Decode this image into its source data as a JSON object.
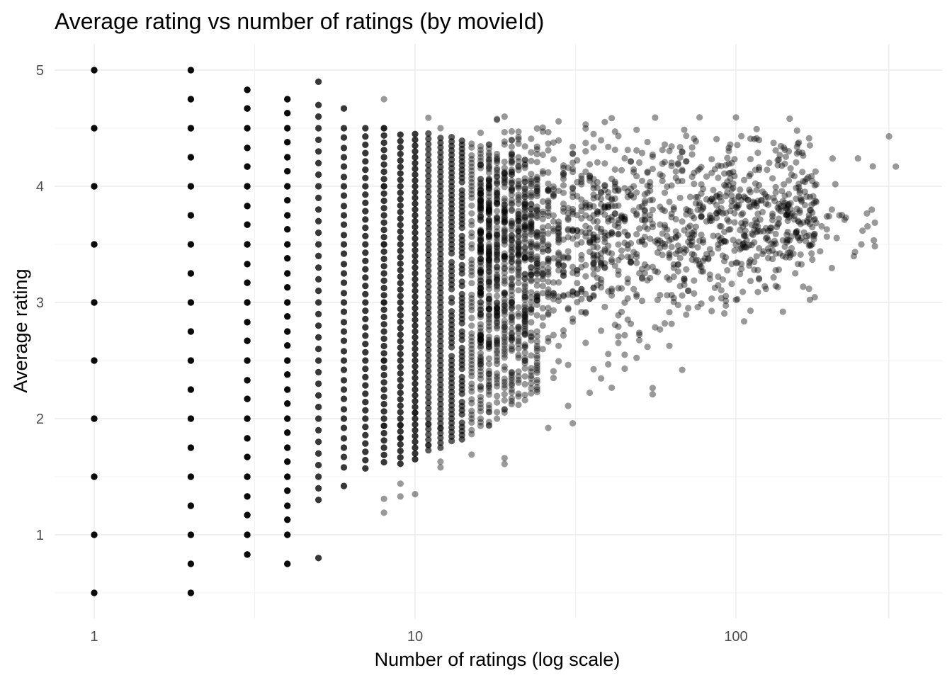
{
  "chart_data": {
    "type": "scatter",
    "title": "Average rating vs number of ratings (by movieId)",
    "xlabel": "Number of ratings (log scale)",
    "ylabel": "Average rating",
    "x_scale": "log10",
    "xlim": [
      0.85,
      370
    ],
    "ylim": [
      0.3,
      5.2
    ],
    "x_ticks": [
      1,
      10,
      100
    ],
    "x_tick_labels": [
      "1",
      "10",
      "100"
    ],
    "y_ticks": [
      1,
      2,
      3,
      4,
      5
    ],
    "y_tick_labels": [
      "1",
      "2",
      "3",
      "4",
      "5"
    ],
    "grid": true,
    "legend": "none",
    "point_color": "#000000",
    "point_opacity": 0.4,
    "sample_points": [
      {
        "n": 1,
        "ratings": [
          0.5,
          1,
          1.5,
          2,
          2.5,
          3,
          3.5,
          4,
          4.5,
          5
        ]
      },
      {
        "n": 2,
        "ratings": [
          0.5,
          0.75,
          1,
          1.25,
          1.5,
          1.75,
          2,
          2.25,
          2.5,
          2.75,
          3,
          3.25,
          3.5,
          3.75,
          4,
          4.25,
          4.5,
          4.75,
          5
        ]
      },
      {
        "n": 3,
        "ratings": [
          0.83,
          1,
          1.17,
          1.33,
          1.5,
          1.67,
          1.83,
          2,
          2.17,
          2.33,
          2.5,
          2.67,
          2.83,
          3,
          3.17,
          3.33,
          3.5,
          3.67,
          3.83,
          4,
          4.17,
          4.33,
          4.5,
          4.67,
          4.83
        ]
      },
      {
        "n": 4,
        "ratings": [
          0.75,
          1,
          1.13,
          1.25,
          1.38,
          1.5,
          1.63,
          1.75,
          1.88,
          2,
          2.13,
          2.25,
          2.38,
          2.5,
          2.63,
          2.75,
          2.88,
          3,
          3.13,
          3.25,
          3.38,
          3.5,
          3.63,
          3.75,
          3.88,
          4,
          4.13,
          4.25,
          4.38,
          4.5,
          4.63,
          4.75
        ]
      },
      {
        "n": 5,
        "ratings": [
          0.8,
          1.3,
          1.4,
          1.5,
          1.6,
          1.7,
          1.8,
          1.9,
          2,
          2.1,
          2.2,
          2.3,
          2.4,
          2.5,
          2.6,
          2.7,
          2.8,
          2.9,
          3,
          3.1,
          3.2,
          3.3,
          3.4,
          3.5,
          3.6,
          3.7,
          3.8,
          3.9,
          4,
          4.1,
          4.2,
          4.3,
          4.4,
          4.5,
          4.6,
          4.7,
          4.9
        ]
      },
      {
        "n": 6,
        "ratings": [
          1.42,
          1.58,
          1.67,
          1.75,
          1.83,
          1.92,
          2,
          2.08,
          2.17,
          2.25,
          2.33,
          2.42,
          2.5,
          2.58,
          2.67,
          2.75,
          2.83,
          2.92,
          3,
          3.08,
          3.17,
          3.25,
          3.33,
          3.42,
          3.5,
          3.58,
          3.67,
          3.75,
          3.83,
          3.92,
          4,
          4.08,
          4.17,
          4.25,
          4.33,
          4.42,
          4.5,
          4.67
        ]
      },
      {
        "n": 8,
        "ratings": [
          1.19,
          1.31,
          1.94,
          2.5,
          3,
          3.5,
          4,
          4.5,
          4.75
        ]
      },
      {
        "n": 9,
        "ratings": [
          1.33,
          1.44,
          1.83,
          1.94
        ]
      },
      {
        "n": 10,
        "ratings": [
          1.35,
          2.05
        ]
      },
      {
        "n": 11,
        "ratings": [
          1.77,
          1.95,
          4.59
        ]
      },
      {
        "n": 12,
        "ratings": [
          1.58,
          1.63,
          1.92,
          4.5
        ]
      },
      {
        "n": 15,
        "ratings": [
          1.69
        ]
      },
      {
        "n": 17,
        "ratings": [
          1.94
        ]
      },
      {
        "n": 19,
        "ratings": [
          1.61,
          1.66,
          2.08
        ]
      },
      {
        "n": 21,
        "ratings": [
          4.47
        ]
      },
      {
        "n": 26,
        "ratings": [
          1.92
        ]
      },
      {
        "n": 30,
        "ratings": [
          2.11
        ]
      },
      {
        "n": 31,
        "ratings": [
          1.96
        ]
      },
      {
        "n": 45,
        "ratings": [
          2.55
        ]
      },
      {
        "n": 55,
        "ratings": [
          2.21
        ]
      },
      {
        "n": 68,
        "ratings": [
          2.42
        ]
      },
      {
        "n": 140,
        "ratings": [
          2.92
        ]
      },
      {
        "n": 183,
        "ratings": [
          3.44
        ]
      },
      {
        "n": 210,
        "ratings": [
          3.75
        ]
      },
      {
        "n": 240,
        "ratings": [
          4.24
        ]
      },
      {
        "n": 300,
        "ratings": [
          4.43
        ]
      },
      {
        "n": 315,
        "ratings": [
          4.17
        ]
      }
    ]
  }
}
